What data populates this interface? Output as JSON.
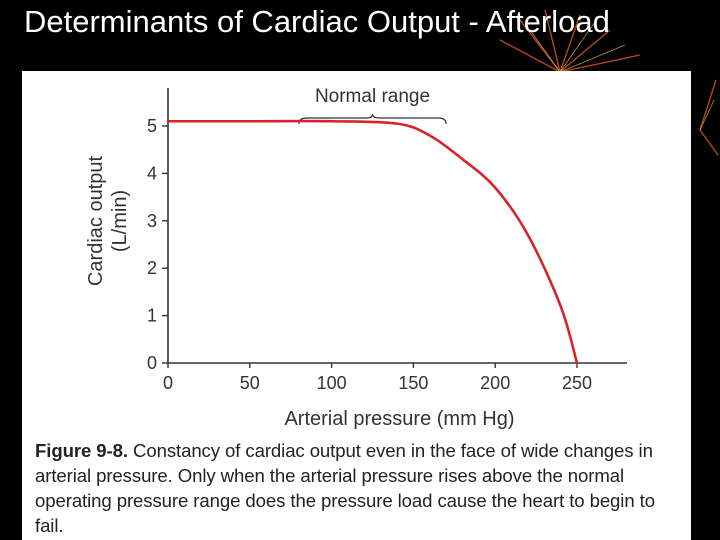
{
  "slide": {
    "title": "Determinants of Cardiac Output - Afterload"
  },
  "caption": {
    "label": "Figure 9-8.",
    "text": " Constancy of cardiac output even in the face of wide changes in arterial pressure. Only when the arterial pressure rises above the normal operating pressure range does the pressure load cause the heart to begin to fail."
  },
  "chart_data": {
    "type": "line",
    "title": "",
    "xlabel": "Arterial pressure (mm Hg)",
    "ylabel": "Cardiac output",
    "ylabel_unit": "(L/min)",
    "xlim": [
      0,
      250
    ],
    "ylim": [
      0,
      5
    ],
    "x_ticks": [
      0,
      50,
      100,
      150,
      200,
      250
    ],
    "y_ticks": [
      0,
      1,
      2,
      3,
      4,
      5
    ],
    "grid": false,
    "annotation": {
      "text": "Normal range",
      "x_range": [
        80,
        170
      ]
    },
    "series": [
      {
        "color": "#d6242c",
        "x": [
          0,
          50,
          100,
          140,
          160,
          180,
          200,
          220,
          240,
          250
        ],
        "y": [
          5.1,
          5.1,
          5.1,
          5.05,
          4.8,
          4.3,
          3.7,
          2.7,
          1.2,
          0
        ]
      }
    ]
  }
}
